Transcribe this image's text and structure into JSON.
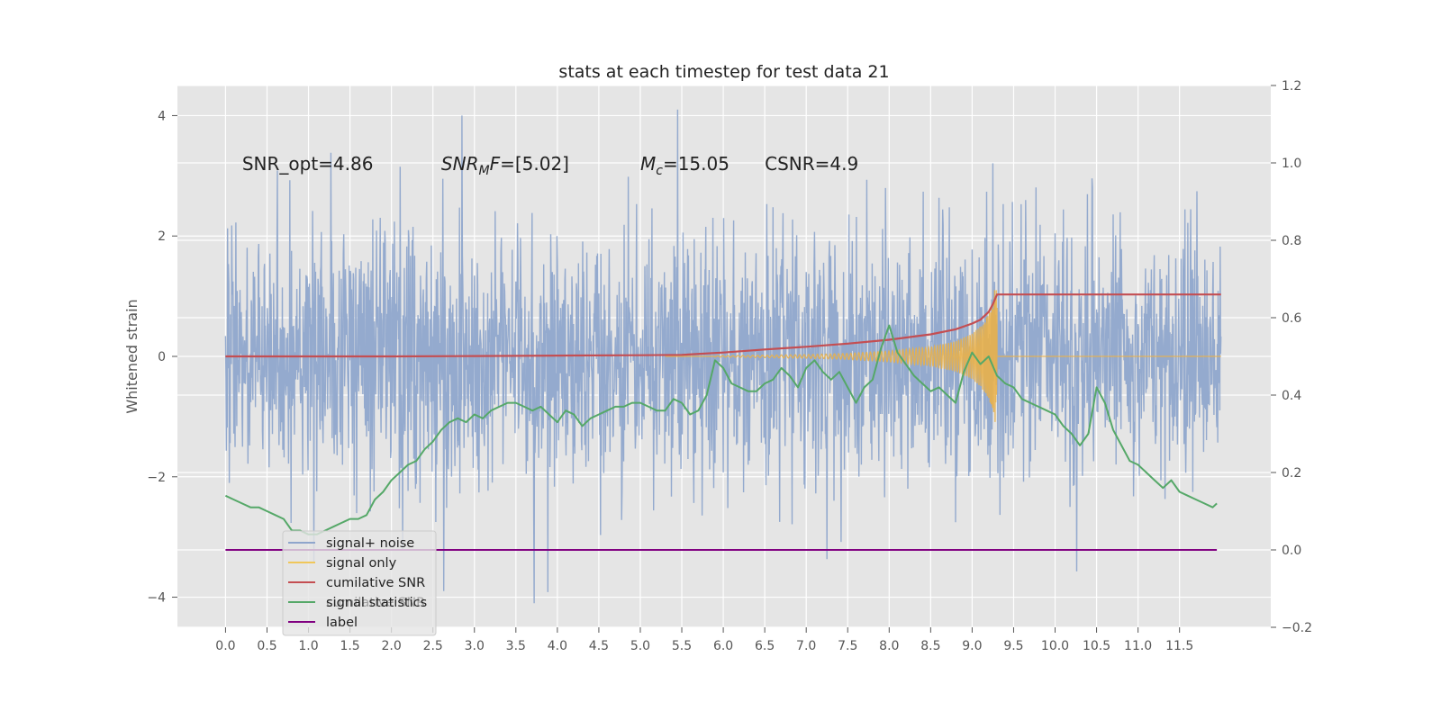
{
  "chart_data": {
    "type": "line",
    "title": "stats at each timestep for test data 21",
    "ylabel": "Whitened strain",
    "xlim": [
      -0.58,
      12.6
    ],
    "ylim": [
      -4.5,
      4.5
    ],
    "y2lim": [
      -0.2,
      1.2
    ],
    "x_ticks": [
      "0.0",
      "0.5",
      "1.0",
      "1.5",
      "2.0",
      "2.5",
      "3.0",
      "3.5",
      "4.0",
      "4.5",
      "5.0",
      "5.5",
      "6.0",
      "6.5",
      "7.0",
      "7.5",
      "8.0",
      "8.5",
      "9.0",
      "9.5",
      "10.0",
      "10.5",
      "11.0",
      "11.5"
    ],
    "y_ticks": [
      -4,
      -2,
      0,
      2,
      4
    ],
    "y_tick_labels": [
      "−4",
      "−2",
      "0",
      "2",
      "4"
    ],
    "y2_ticks": [
      -0.2,
      0.0,
      0.2,
      0.4,
      0.6,
      0.8,
      1.0,
      1.2
    ],
    "y2_tick_labels": [
      "−0.2",
      "0.0",
      "0.2",
      "0.4",
      "0.6",
      "0.8",
      "1.0",
      "1.2"
    ],
    "grid": true,
    "background": "#e5e5e5",
    "annotations": [
      {
        "text": "SNR_opt=4.86",
        "x": 0.2,
        "y": 3.2
      },
      {
        "text": "SNR_MF=[5.02]",
        "x": 2.6,
        "y": 3.2
      },
      {
        "text": "M_c=15.05",
        "x": 5.0,
        "y": 3.2
      },
      {
        "text": "CSNR=4.9",
        "x": 6.5,
        "y": 3.2
      }
    ],
    "legend": {
      "placement": "lower-left",
      "entries": [
        {
          "label": "signal+ noise",
          "color": "#8fa6cc"
        },
        {
          "label": "signal only",
          "color": "#f0c75a"
        },
        {
          "label": "cumilative SNR",
          "color": "#c44e52"
        },
        {
          "label": "signal statistics",
          "color": "#55a868"
        },
        {
          "label": "label",
          "color": "#800080"
        }
      ],
      "hidden_text": "cumilative SNR"
    },
    "series": [
      {
        "name": "signal+ noise",
        "axis": "left",
        "color": "#8fa6cc",
        "x_range": [
          0.0,
          12.0
        ],
        "std": 1.0,
        "n_points": 2400,
        "extremes": [
          {
            "x": 2.85,
            "y": 4.0
          },
          {
            "x": 5.45,
            "y": 4.1
          },
          {
            "x": 3.72,
            "y": -4.1
          }
        ]
      },
      {
        "name": "signal only",
        "axis": "left",
        "color": "#e8b04a",
        "x_range": [
          5.9,
          9.3
        ],
        "envelope": {
          "x": [
            5.9,
            6.5,
            7.0,
            7.5,
            8.0,
            8.5,
            8.8,
            9.0,
            9.1,
            9.2,
            9.27,
            9.3
          ],
          "y": [
            0.01,
            0.02,
            0.03,
            0.05,
            0.09,
            0.16,
            0.25,
            0.38,
            0.5,
            0.7,
            1.0,
            1.0
          ]
        },
        "after": 0.0
      },
      {
        "name": "cumilative SNR",
        "axis": "right",
        "color": "#c44e52",
        "x": [
          0.0,
          1.0,
          2.0,
          3.0,
          4.0,
          5.0,
          5.5,
          6.0,
          6.5,
          7.0,
          7.5,
          8.0,
          8.5,
          8.8,
          9.0,
          9.1,
          9.2,
          9.25,
          9.3,
          12.0
        ],
        "y": [
          0.5,
          0.5,
          0.5,
          0.501,
          0.502,
          0.503,
          0.504,
          0.51,
          0.518,
          0.525,
          0.533,
          0.543,
          0.557,
          0.57,
          0.585,
          0.595,
          0.615,
          0.635,
          0.66,
          0.66
        ]
      },
      {
        "name": "signal statistics",
        "axis": "right",
        "color": "#55a868",
        "x": [
          0.0,
          0.1,
          0.2,
          0.3,
          0.4,
          0.5,
          0.6,
          0.7,
          0.8,
          0.9,
          1.0,
          1.1,
          1.2,
          1.3,
          1.4,
          1.5,
          1.6,
          1.7,
          1.8,
          1.9,
          2.0,
          2.1,
          2.2,
          2.3,
          2.4,
          2.5,
          2.6,
          2.7,
          2.8,
          2.9,
          3.0,
          3.1,
          3.2,
          3.3,
          3.4,
          3.5,
          3.6,
          3.7,
          3.8,
          3.9,
          4.0,
          4.1,
          4.2,
          4.3,
          4.4,
          4.5,
          4.6,
          4.7,
          4.8,
          4.9,
          5.0,
          5.1,
          5.2,
          5.3,
          5.4,
          5.5,
          5.6,
          5.7,
          5.8,
          5.9,
          6.0,
          6.1,
          6.2,
          6.3,
          6.4,
          6.5,
          6.6,
          6.7,
          6.8,
          6.9,
          7.0,
          7.1,
          7.2,
          7.3,
          7.4,
          7.5,
          7.6,
          7.7,
          7.8,
          7.9,
          8.0,
          8.1,
          8.2,
          8.3,
          8.4,
          8.5,
          8.6,
          8.7,
          8.8,
          8.9,
          9.0,
          9.1,
          9.2,
          9.3,
          9.4,
          9.5,
          9.6,
          9.7,
          9.8,
          9.9,
          10.0,
          10.1,
          10.2,
          10.3,
          10.4,
          10.5,
          10.6,
          10.7,
          10.8,
          10.9,
          11.0,
          11.1,
          11.2,
          11.3,
          11.4,
          11.5,
          11.6,
          11.7,
          11.8,
          11.9,
          11.95
        ],
        "y": [
          0.14,
          0.13,
          0.12,
          0.11,
          0.11,
          0.1,
          0.09,
          0.08,
          0.05,
          0.05,
          0.04,
          0.04,
          0.05,
          0.06,
          0.07,
          0.08,
          0.08,
          0.09,
          0.13,
          0.15,
          0.18,
          0.2,
          0.22,
          0.23,
          0.26,
          0.28,
          0.31,
          0.33,
          0.34,
          0.33,
          0.35,
          0.34,
          0.36,
          0.37,
          0.38,
          0.38,
          0.37,
          0.36,
          0.37,
          0.35,
          0.33,
          0.36,
          0.35,
          0.32,
          0.34,
          0.35,
          0.36,
          0.37,
          0.37,
          0.38,
          0.38,
          0.37,
          0.36,
          0.36,
          0.39,
          0.38,
          0.35,
          0.36,
          0.4,
          0.49,
          0.47,
          0.43,
          0.42,
          0.41,
          0.41,
          0.43,
          0.44,
          0.47,
          0.45,
          0.42,
          0.47,
          0.49,
          0.46,
          0.44,
          0.46,
          0.42,
          0.38,
          0.42,
          0.44,
          0.52,
          0.58,
          0.51,
          0.48,
          0.45,
          0.43,
          0.41,
          0.42,
          0.4,
          0.38,
          0.46,
          0.51,
          0.48,
          0.5,
          0.45,
          0.43,
          0.42,
          0.39,
          0.38,
          0.37,
          0.36,
          0.35,
          0.32,
          0.3,
          0.27,
          0.3,
          0.42,
          0.38,
          0.31,
          0.27,
          0.23,
          0.22,
          0.2,
          0.18,
          0.16,
          0.18,
          0.15,
          0.14,
          0.13,
          0.12,
          0.11,
          0.12
        ]
      },
      {
        "name": "label",
        "axis": "right",
        "color": "#800080",
        "x": [
          0.0,
          11.95
        ],
        "y": [
          0.0,
          0.0
        ]
      }
    ]
  }
}
